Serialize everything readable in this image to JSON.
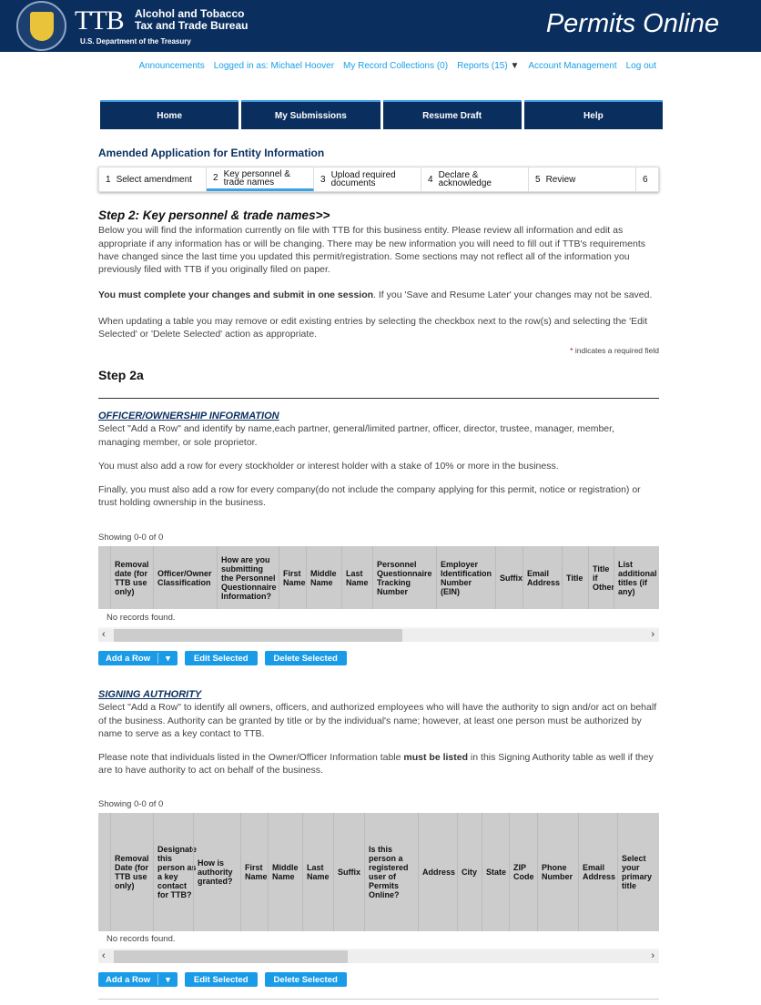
{
  "header": {
    "logo_text": "TTB",
    "bureau_line1": "Alcohol and Tobacco",
    "bureau_line2": "Tax and Trade Bureau",
    "department": "U.S. Department of the Treasury",
    "app_name": "Permits Online"
  },
  "top_links": {
    "announcements": "Announcements",
    "logged_in": "Logged in as: Michael Hoover",
    "collections": "My Record Collections (0)",
    "reports": "Reports (15)",
    "account": "Account Management",
    "logout": "Log out"
  },
  "nav": [
    "Home",
    "My Submissions",
    "Resume Draft",
    "Help"
  ],
  "app_title": "Amended Application for Entity Information",
  "steps": [
    {
      "num": "1",
      "label": "Select amendment"
    },
    {
      "num": "2",
      "label": "Key personnel & trade names",
      "active": true
    },
    {
      "num": "3",
      "label": "Upload required documents"
    },
    {
      "num": "4",
      "label": "Declare & acknowledge"
    },
    {
      "num": "5",
      "label": "Review"
    },
    {
      "num": "6",
      "label": ""
    }
  ],
  "step_heading": "Step 2: Key personnel & trade names>>",
  "intro": "Below you will find the information currently on file with TTB for this business entity. Please review all information and edit as appropriate if any information has or will be changing. There may be new information you will need to fill out if TTB's requirements have changed since the last time you updated this permit/registration. Some sections may not reflect all of the information you previously filed with TTB if you originally filed on paper.",
  "session_bold": "You must complete your changes and submit in one session",
  "session_rest": ". If you 'Save and Resume Later' your changes may not be saved.",
  "table_help": "When updating a table you may remove or edit existing entries by selecting the checkbox next to the row(s) and selecting the 'Edit Selected' or 'Delete Selected' action as appropriate.",
  "required_star": "*",
  "required_note": " indicates a required field",
  "step2a": "Step 2a",
  "officer": {
    "title": "OFFICER/OWNERSHIP INFORMATION",
    "p1": "Select \"Add a Row\" and identify by name,each partner, general/limited partner, officer, director, trustee, manager, member, managing member, or sole proprietor.",
    "p2": "You must also add a row for every stockholder or interest holder with a stake of 10% or more in the business.",
    "p3": "Finally, you must also add a row for every company(do not include the company applying for this permit, notice or registration) or trust holding ownership in the business.",
    "showing": "Showing 0-0 of 0",
    "columns": [
      "Removal date (for TTB use only)",
      "Officer/Owner Classification",
      "How are you submitting the Personnel Questionnaire Information?",
      "First Name",
      "Middle Name",
      "Last Name",
      "Personnel Questionnaire Tracking Number",
      "Employer Identification Number (EIN)",
      "Suffix",
      "Email Address",
      "Title",
      "Title if Other",
      "List additional titles (if any)"
    ],
    "no_records": "No records found."
  },
  "signing": {
    "title": "SIGNING AUTHORITY",
    "p1": "Select \"Add a Row\" to identify all owners, officers, and authorized employees who will have the authority to sign and/or act on behalf of the business. Authority can be granted by title or by the individual's name; however, at least one person must be authorized by name to serve as a key contact to TTB.",
    "p2a": "Please note that individuals listed in the Owner/Officer Information table ",
    "p2b": "must be listed",
    "p2c": " in this Signing Authority table as well if they are to have authority to act on behalf of the business.",
    "showing": "Showing 0-0 of 0",
    "columns": [
      "Removal Date (for TTB use only)",
      "Designate this person as a key contact for TTB?",
      "How is authority granted?",
      "First Name",
      "Middle Name",
      "Last Name",
      "Suffix",
      "Is this person a registered user of Permits Online?",
      "Address",
      "City",
      "State",
      "ZIP Code",
      "Phone Number",
      "Email Address",
      "Select your primary title"
    ],
    "no_records": "No records found."
  },
  "buttons": {
    "add": "Add a Row",
    "edit": "Edit Selected",
    "delete": "Delete Selected"
  }
}
